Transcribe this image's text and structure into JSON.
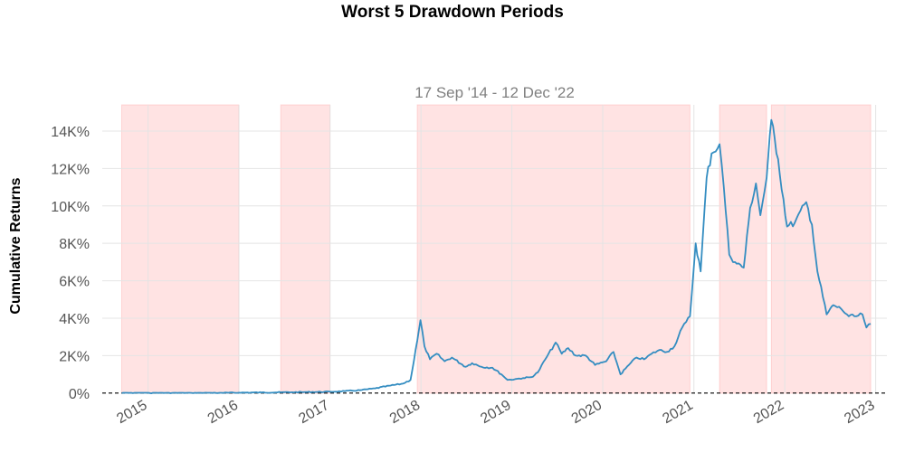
{
  "chart_data": {
    "type": "line",
    "title": "Worst 5 Drawdown Periods",
    "subtitle": "17 Sep '14 - 12 Dec '22",
    "xlabel": "",
    "ylabel": "Cumulative Returns",
    "xlim": [
      "2014-07-01",
      "2023-02-15"
    ],
    "ylim": [
      -10,
      15400
    ],
    "y_tick_values": [
      0,
      2000,
      4000,
      6000,
      8000,
      10000,
      12000,
      14000
    ],
    "y_tick_labels": [
      "0%",
      "2K%",
      "4K%",
      "6K%",
      "8K%",
      "10K%",
      "12K%",
      "14K%"
    ],
    "x_tick_dates": [
      "2015-01-01",
      "2016-01-01",
      "2017-01-01",
      "2018-01-01",
      "2019-01-01",
      "2020-01-01",
      "2021-01-01",
      "2022-01-01",
      "2023-01-01"
    ],
    "x_tick_labels": [
      "2015",
      "2016",
      "2017",
      "2018",
      "2019",
      "2020",
      "2021",
      "2022",
      "2023"
    ],
    "grid": true,
    "line_color": "#348dc1",
    "drawdown_color": "#ffcccc",
    "baseline_value": 0,
    "drawdown_periods": [
      {
        "start": "2014-09-17",
        "end": "2015-12-31"
      },
      {
        "start": "2016-06-17",
        "end": "2016-12-31"
      },
      {
        "start": "2017-12-17",
        "end": "2020-12-16"
      },
      {
        "start": "2021-04-14",
        "end": "2021-10-20"
      },
      {
        "start": "2021-11-08",
        "end": "2022-12-12"
      }
    ],
    "series": [
      {
        "x": [
          "2014-09-17",
          "2014-11-01",
          "2015-01-14",
          "2015-04-01",
          "2015-07-01",
          "2015-10-01",
          "2016-01-01",
          "2016-04-01",
          "2016-06-17",
          "2016-08-01",
          "2016-10-01",
          "2017-01-01",
          "2017-03-01",
          "2017-05-01",
          "2017-07-01",
          "2017-09-01",
          "2017-10-20",
          "2017-11-20",
          "2017-12-17",
          "2017-12-30",
          "2018-01-15",
          "2018-02-06",
          "2018-03-05",
          "2018-04-06",
          "2018-05-05",
          "2018-06-29",
          "2018-07-25",
          "2018-09-01",
          "2018-10-15",
          "2018-11-20",
          "2018-12-15",
          "2019-01-15",
          "2019-02-15",
          "2019-03-20",
          "2019-04-15",
          "2019-05-15",
          "2019-06-26",
          "2019-07-20",
          "2019-08-15",
          "2019-09-15",
          "2019-10-25",
          "2019-12-01",
          "2020-01-15",
          "2020-02-13",
          "2020-03-12",
          "2020-04-15",
          "2020-05-15",
          "2020-06-15",
          "2020-07-15",
          "2020-08-15",
          "2020-09-15",
          "2020-10-15",
          "2020-11-15",
          "2020-12-01",
          "2020-12-16",
          "2021-01-08",
          "2021-01-28",
          "2021-02-21",
          "2021-03-13",
          "2021-04-14",
          "2021-05-01",
          "2021-05-23",
          "2021-06-15",
          "2021-07-20",
          "2021-08-15",
          "2021-09-07",
          "2021-09-25",
          "2021-10-20",
          "2021-11-08",
          "2021-12-05",
          "2022-01-10",
          "2022-02-10",
          "2022-03-28",
          "2022-04-20",
          "2022-05-12",
          "2022-06-18",
          "2022-07-15",
          "2022-08-15",
          "2022-09-15",
          "2022-10-15",
          "2022-11-09",
          "2022-11-25",
          "2022-12-12"
        ],
        "y": [
          0,
          -5,
          -15,
          -10,
          -5,
          5,
          20,
          30,
          40,
          45,
          55,
          70,
          100,
          150,
          250,
          400,
          500,
          700,
          2800,
          3900,
          2500,
          1800,
          2100,
          1700,
          1900,
          1400,
          1600,
          1400,
          1350,
          1000,
          700,
          750,
          800,
          850,
          1100,
          1800,
          2700,
          2100,
          2400,
          2000,
          2000,
          1500,
          1700,
          2200,
          1000,
          1500,
          1900,
          1800,
          2100,
          2300,
          2200,
          2500,
          3500,
          3800,
          4100,
          8000,
          6500,
          11500,
          12800,
          13300,
          11000,
          7400,
          7000,
          6700,
          9900,
          11200,
          9500,
          11500,
          14600,
          12500,
          8900,
          9100,
          10200,
          9000,
          6500,
          4200,
          4700,
          4500,
          4100,
          4100,
          4200,
          3500,
          3700
        ]
      }
    ]
  }
}
